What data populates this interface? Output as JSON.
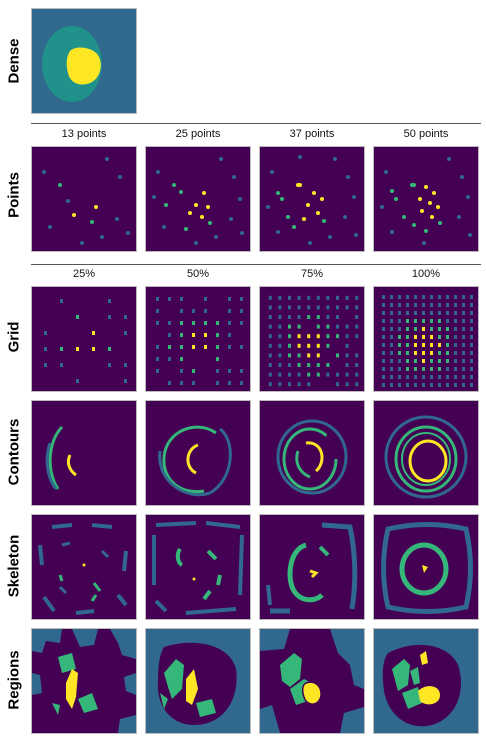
{
  "rows": {
    "dense": "Dense",
    "points": "Points",
    "grid": "Grid",
    "contours": "Contours",
    "skeleton": "Skeleton",
    "regions": "Regions"
  },
  "points_columns": [
    "13 points",
    "25 points",
    "37 points",
    "50 points"
  ],
  "grid_columns": [
    "25%",
    "50%",
    "75%",
    "100%"
  ],
  "colors": {
    "background": "#440154",
    "teal": "#31688e",
    "green": "#35b779",
    "yellow": "#fde725"
  }
}
